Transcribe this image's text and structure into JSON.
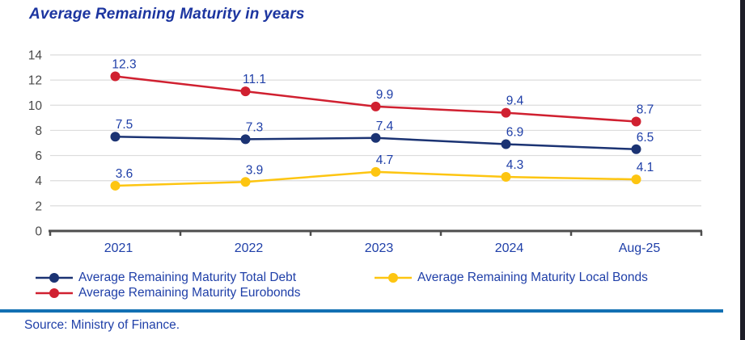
{
  "page": {
    "title": "Average Remaining Maturity in years",
    "source": "Source: Ministry of Finance."
  },
  "colors": {
    "title": "#1c35a0",
    "label": "#1f3fa8",
    "total_debt": "#1b3373",
    "eurobonds": "#d02030",
    "local_bonds": "#fdc511",
    "gridline": "#dcdcdc",
    "axis": "#4d4d4d",
    "tick_label": "#4a4a4a",
    "divider": "#1270b3",
    "edge_bar": "#1e1e28"
  },
  "chart_data": {
    "type": "line",
    "title": "Average Remaining Maturity in years",
    "categories": [
      "2021",
      "2022",
      "2023",
      "2024",
      "Aug-25"
    ],
    "series": [
      {
        "name": "Average Remaining Maturity Total Debt",
        "color_key": "total_debt",
        "values": [
          7.5,
          7.3,
          7.4,
          6.9,
          6.5
        ]
      },
      {
        "name": "Average Remaining Maturity Eurobonds",
        "color_key": "eurobonds",
        "values": [
          12.3,
          11.1,
          9.9,
          9.4,
          8.7
        ]
      },
      {
        "name": "Average Remaining Maturity Local Bonds",
        "color_key": "local_bonds",
        "values": [
          3.6,
          3.9,
          4.7,
          4.3,
          4.1
        ]
      }
    ],
    "ylim": [
      0,
      14
    ],
    "ytick_step": 2,
    "grid": true,
    "data_labels": true,
    "legend_position": "bottom",
    "legend_columns": [
      [
        0,
        1
      ],
      [
        2
      ]
    ]
  }
}
